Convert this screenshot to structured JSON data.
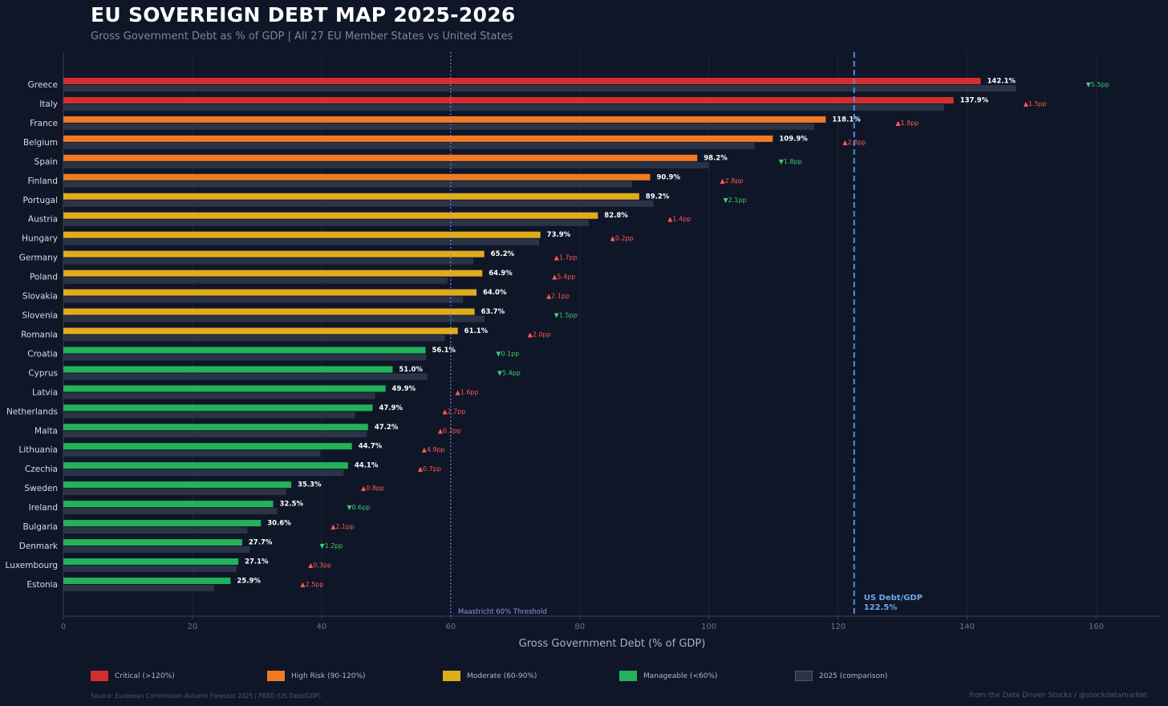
{
  "header": {
    "title": "EU SOVEREIGN DEBT MAP 2025-2026",
    "subtitle": "Gross Government Debt as % of GDP | All 27 EU Member States vs United States"
  },
  "colors": {
    "critical": "#d32f2f",
    "high": "#f07a22",
    "moderate": "#e0ac1c",
    "manageable": "#22b35a",
    "comparison": "#2b3446",
    "increase": "#ff5a4f",
    "decrease": "#3fcc6a",
    "us_line": "#4f8fd8",
    "threshold": "#a08ce8"
  },
  "chart_data": {
    "type": "bar",
    "orientation": "horizontal",
    "xlabel": "Gross Government Debt (% of GDP)",
    "xlim": [
      0,
      170
    ],
    "xticks": [
      0,
      20,
      40,
      60,
      80,
      100,
      120,
      140,
      160
    ],
    "categories": [
      "Greece",
      "Italy",
      "France",
      "Belgium",
      "Spain",
      "Finland",
      "Portugal",
      "Austria",
      "Hungary",
      "Germany",
      "Poland",
      "Slovakia",
      "Slovenia",
      "Romania",
      "Croatia",
      "Cyprus",
      "Latvia",
      "Netherlands",
      "Malta",
      "Lithuania",
      "Czechia",
      "Sweden",
      "Ireland",
      "Bulgaria",
      "Denmark",
      "Luxembourg",
      "Estonia"
    ],
    "series": [
      {
        "name": "2026",
        "values": [
          142.1,
          137.9,
          118.1,
          109.9,
          98.2,
          90.9,
          89.2,
          82.8,
          73.9,
          65.2,
          64.9,
          64.0,
          63.7,
          61.1,
          56.1,
          51.0,
          49.9,
          47.9,
          47.2,
          44.7,
          44.1,
          35.3,
          32.5,
          30.6,
          27.7,
          27.1,
          25.9
        ]
      },
      {
        "name": "2025 (comparison)",
        "values": [
          147.6,
          136.4,
          116.3,
          107.1,
          100.0,
          88.1,
          91.4,
          81.4,
          73.7,
          63.5,
          59.5,
          61.9,
          65.2,
          59.1,
          56.2,
          56.4,
          48.3,
          45.2,
          47.0,
          39.8,
          43.4,
          34.5,
          33.1,
          28.5,
          28.9,
          26.8,
          23.4
        ]
      }
    ],
    "value_labels": [
      "142.1%",
      "137.9%",
      "118.1%",
      "109.9%",
      "98.2%",
      "90.9%",
      "89.2%",
      "82.8%",
      "73.9%",
      "65.2%",
      "64.9%",
      "64.0%",
      "63.7%",
      "61.1%",
      "56.1%",
      "51.0%",
      "49.9%",
      "47.9%",
      "47.2%",
      "44.7%",
      "44.1%",
      "35.3%",
      "32.5%",
      "30.6%",
      "27.7%",
      "27.1%",
      "25.9%"
    ],
    "change_labels": [
      "▼5.5pp",
      "▲1.5pp",
      "▲1.8pp",
      "▲2.8pp",
      "▼1.8pp",
      "▲2.8pp",
      "▼2.1pp",
      "▲1.4pp",
      "▲0.2pp",
      "▲1.7pp",
      "▲5.4pp",
      "▲2.1pp",
      "▼1.5pp",
      "▲2.0pp",
      "▼0.1pp",
      "▼5.4pp",
      "▲1.6pp",
      "▲2.7pp",
      "▲0.2pp",
      "▲4.9pp",
      "▲0.7pp",
      "▲0.8pp",
      "▼0.6pp",
      "▲2.1pp",
      "▼1.2pp",
      "▲0.3pp",
      "▲2.5pp"
    ],
    "change_direction": [
      "down",
      "up",
      "up",
      "up",
      "down",
      "up",
      "down",
      "up",
      "up",
      "up",
      "up",
      "up",
      "down",
      "up",
      "down",
      "down",
      "up",
      "up",
      "up",
      "up",
      "up",
      "up",
      "down",
      "up",
      "down",
      "up",
      "up"
    ],
    "risk_category": [
      "critical",
      "critical",
      "high",
      "high",
      "high",
      "high",
      "moderate",
      "moderate",
      "moderate",
      "moderate",
      "moderate",
      "moderate",
      "moderate",
      "moderate",
      "manageable",
      "manageable",
      "manageable",
      "manageable",
      "manageable",
      "manageable",
      "manageable",
      "manageable",
      "manageable",
      "manageable",
      "manageable",
      "manageable",
      "manageable"
    ],
    "reference_lines": {
      "threshold": {
        "value": 60,
        "label": "Maastricht 60% Threshold"
      },
      "us": {
        "value": 122.5,
        "label_line1": "US Debt/GDP",
        "label_line2": "122.5%"
      }
    }
  },
  "legend": {
    "items": [
      {
        "key": "critical",
        "label": "Critical (>120%)"
      },
      {
        "key": "high",
        "label": "High Risk (90-120%)"
      },
      {
        "key": "moderate",
        "label": "Moderate (60-90%)"
      },
      {
        "key": "manageable",
        "label": "Manageable (<60%)"
      },
      {
        "key": "comparison",
        "label": "2025 (comparison)"
      }
    ]
  },
  "footer": {
    "source": "Source: European Commission Autumn Forecast 2025 | FRED (US Debt/GDP)",
    "credit": "from the Data Driven Stocks / @stockdatamarket"
  }
}
